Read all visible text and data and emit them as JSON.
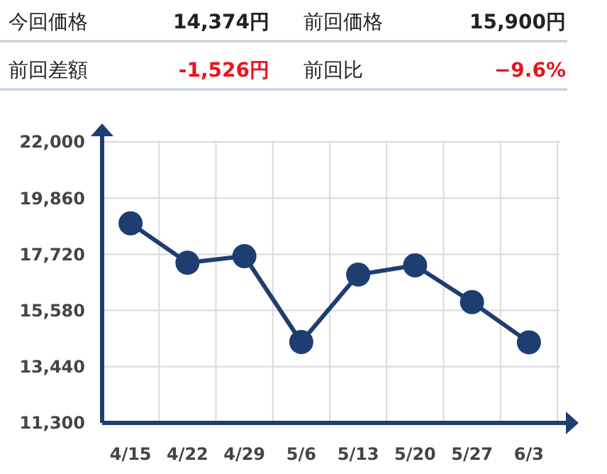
{
  "chart_data": [
    {
      "type": "other",
      "annotations": [
        "今回価格",
        "14,374円",
        "前回価格",
        "15,900円",
        "前回差額",
        "-1,526円",
        "前回比",
        "−9.6%"
      ]
    },
    {
      "type": "line",
      "categories": [
        "4/15",
        "4/22",
        "4/29",
        "5/6",
        "5/13",
        "5/20",
        "5/27",
        "6/3"
      ],
      "series": [
        {
          "color": "#1e3e72",
          "values": [
            18900,
            17400,
            17650,
            14380,
            16950,
            17300,
            15900,
            14370
          ]
        }
      ],
      "ylim": [
        11300,
        22000
      ],
      "yticks": [
        {
          "value": 11300,
          "label": "11,300"
        },
        {
          "value": 13440,
          "label": "13,440"
        },
        {
          "value": 15580,
          "label": "15,580"
        },
        {
          "value": 17720,
          "label": "17,720"
        },
        {
          "value": 19860,
          "label": "19,860"
        },
        {
          "value": 22000,
          "label": "22,000"
        }
      ],
      "grid": true,
      "marker": "circle",
      "line_style": "solid"
    }
  ]
}
